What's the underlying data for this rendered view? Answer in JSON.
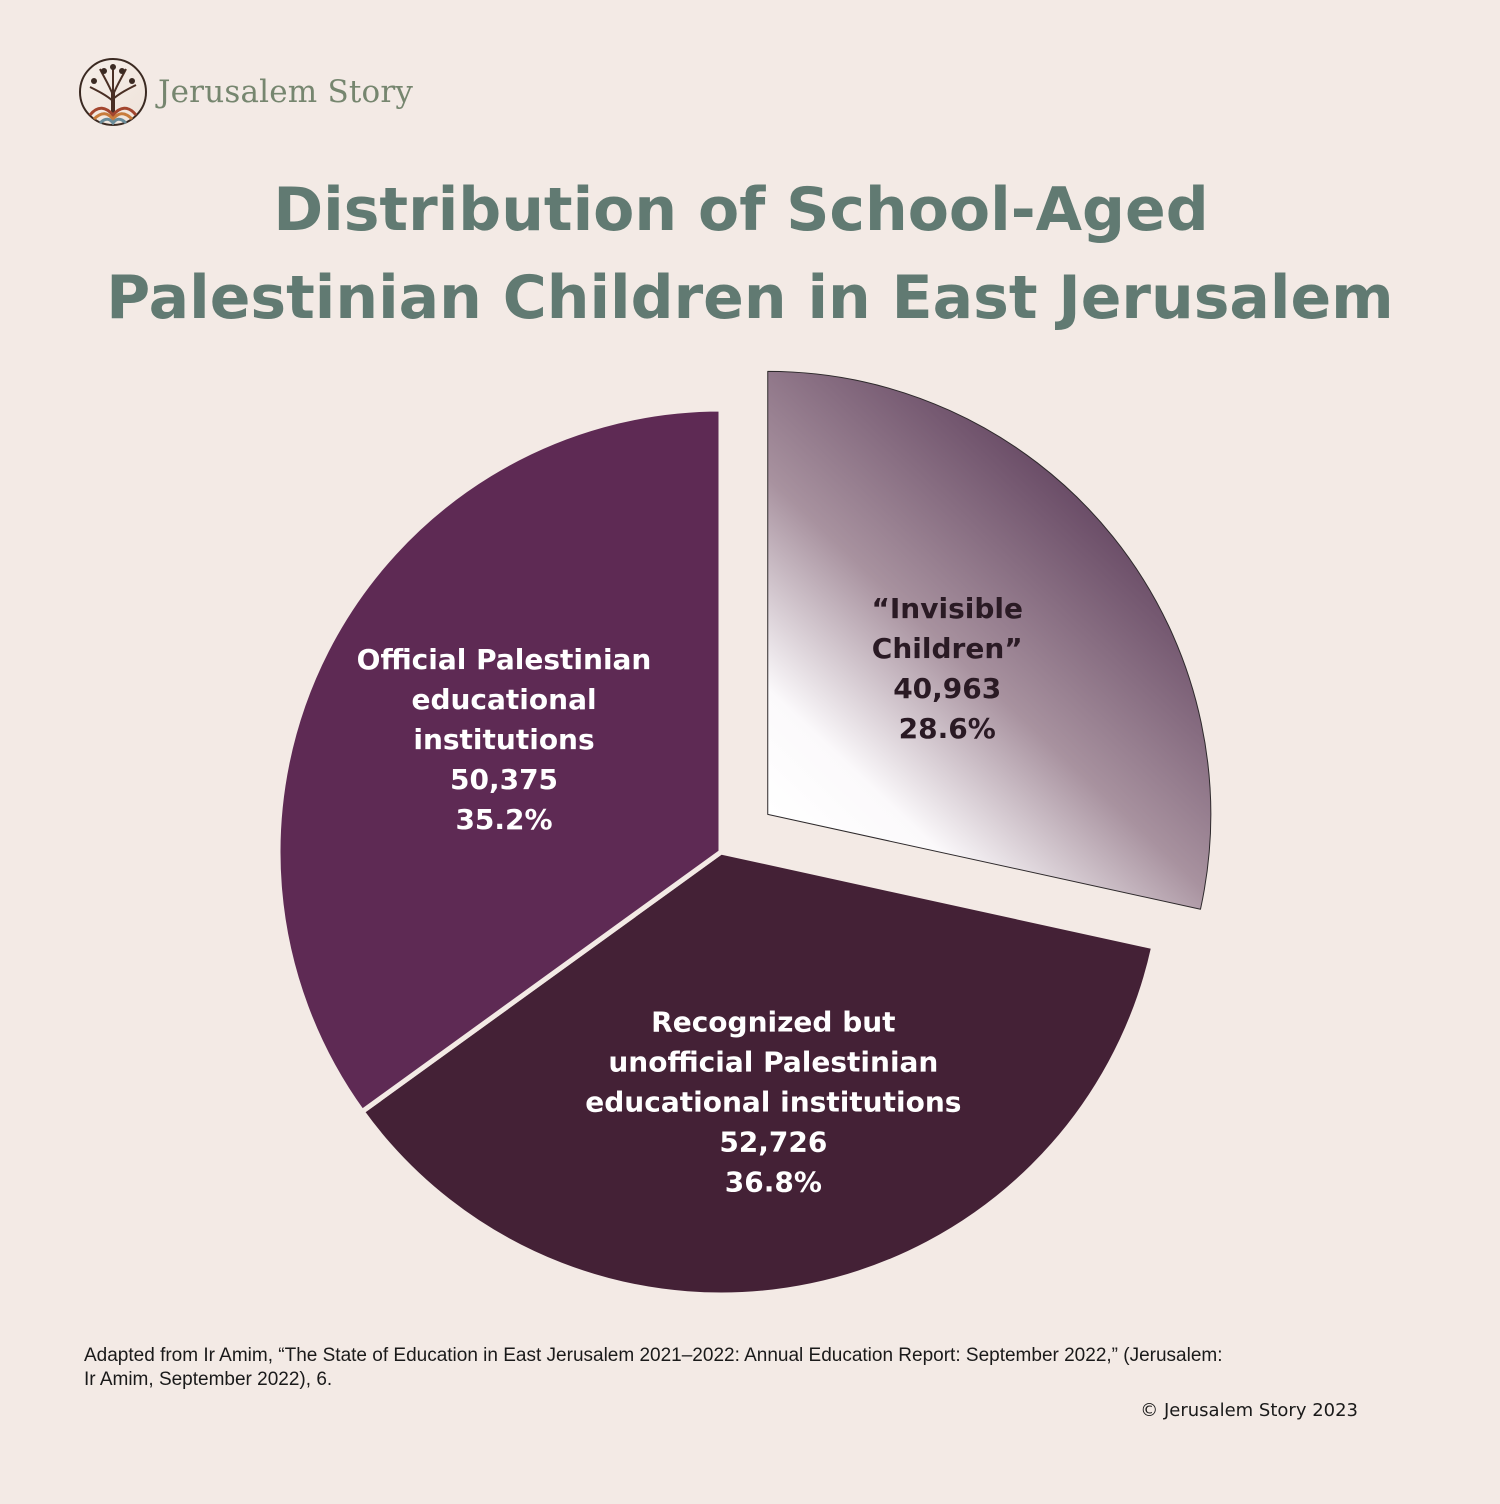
{
  "brand": {
    "name": "Jerusalem Story",
    "logo_icon": "tree-of-life-icon"
  },
  "title_lines": [
    "Distribution of School-Aged",
    "Palestinian Children in East Jerusalem"
  ],
  "chart_data": {
    "type": "pie",
    "title": "Distribution of School-Aged Palestinian Children in East Jerusalem",
    "slices": [
      {
        "label_lines": [
          "“Invisible",
          "Children”"
        ],
        "value": 40963,
        "value_label": "40,963",
        "percent": 28.6,
        "percent_label": "28.6%",
        "exploded": true,
        "fill": "gradient",
        "colors": [
          "#ffffff",
          "#5e3f5c"
        ],
        "text_color": "#2a1a24"
      },
      {
        "label_lines": [
          "Recognized but",
          "unofficial Palestinian",
          "educational institutions"
        ],
        "value": 52726,
        "value_label": "52,726",
        "percent": 36.8,
        "percent_label": "36.8%",
        "exploded": false,
        "fill": "solid",
        "colors": [
          "#442136"
        ],
        "text_color": "#ffffff"
      },
      {
        "label_lines": [
          "Official Palestinian",
          "educational",
          "institutions"
        ],
        "value": 50375,
        "value_label": "50,375",
        "percent": 35.2,
        "percent_label": "35.2%",
        "exploded": false,
        "fill": "solid",
        "colors": [
          "#5e2a54"
        ],
        "text_color": "#ffffff"
      }
    ],
    "start_angle_deg": 0,
    "direction": "clockwise"
  },
  "source_lines": [
    "Adapted from Ir Amim, “The State of Education in East Jerusalem 2021–2022: Annual Education Report: September 2022,” (Jerusalem:",
    "Ir Amim, September 2022), 6."
  ],
  "copyright": "© Jerusalem Story 2023",
  "colors": {
    "background": "#f3eae5",
    "title": "#617a72",
    "brand": "#76866f",
    "slice_separator": "#f3eae5"
  }
}
